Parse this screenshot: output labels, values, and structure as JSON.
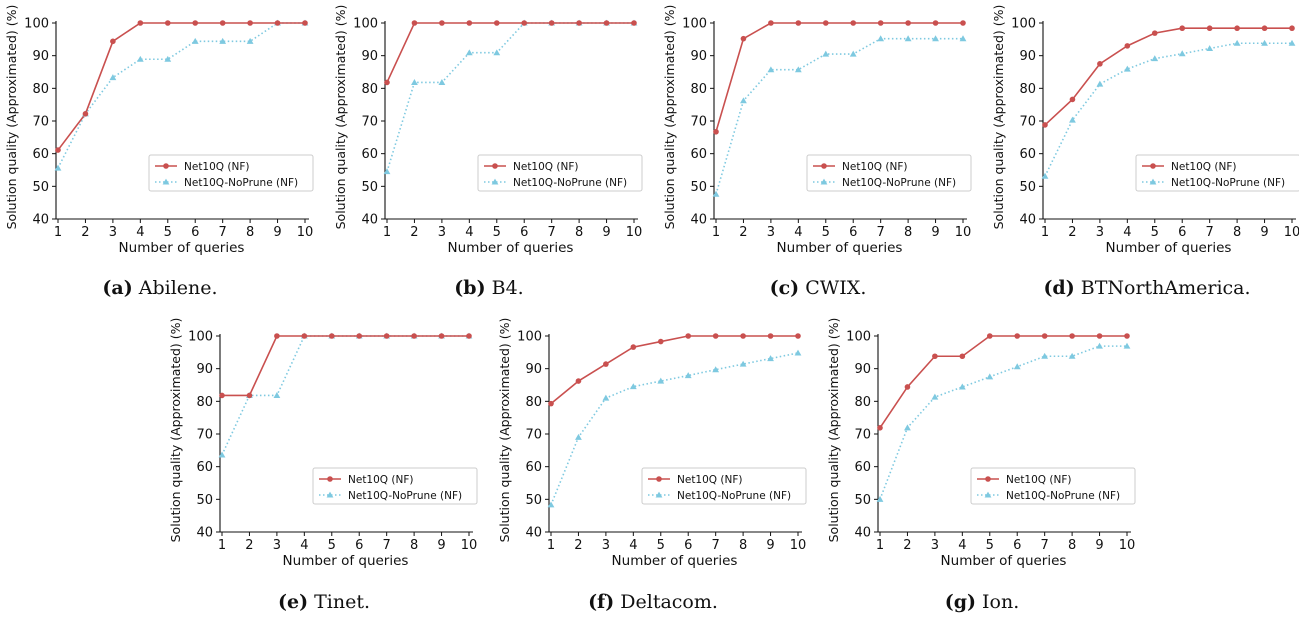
{
  "colors": {
    "series_1": "#c9504f",
    "series_2": "#7ec9e0",
    "axis": "#111111"
  },
  "chart_data": [
    {
      "type": "line",
      "panel_label": "(a)",
      "title": "Abilene.",
      "xlabel": "Number of queries",
      "ylabel": "Solution quality (Approximated) (%)",
      "x": [
        1,
        2,
        3,
        4,
        5,
        6,
        7,
        8,
        9,
        10
      ],
      "ylim": [
        40,
        100
      ],
      "yticks": [
        40,
        50,
        60,
        70,
        80,
        90,
        100
      ],
      "grid": false,
      "legend_position": "lower right",
      "series": [
        {
          "name": "Net10Q (NF)",
          "marker": "circle",
          "style": "solid",
          "values": [
            61.1,
            72.2,
            94.4,
            100,
            100,
            100,
            100,
            100,
            100,
            100
          ]
        },
        {
          "name": "Net10Q-NoPrune (NF)",
          "marker": "triangle",
          "style": "dotted",
          "values": [
            55.6,
            72.2,
            83.3,
            88.9,
            88.9,
            94.4,
            94.4,
            94.4,
            100,
            100
          ]
        }
      ]
    },
    {
      "type": "line",
      "panel_label": "(b)",
      "title": "B4.",
      "xlabel": "Number of queries",
      "ylabel": "Solution quality (Approximated) (%)",
      "x": [
        1,
        2,
        3,
        4,
        5,
        6,
        7,
        8,
        9,
        10
      ],
      "ylim": [
        40,
        100
      ],
      "yticks": [
        40,
        50,
        60,
        70,
        80,
        90,
        100
      ],
      "grid": false,
      "legend_position": "lower right",
      "series": [
        {
          "name": "Net10Q (NF)",
          "marker": "circle",
          "style": "solid",
          "values": [
            81.8,
            100,
            100,
            100,
            100,
            100,
            100,
            100,
            100,
            100
          ]
        },
        {
          "name": "Net10Q-NoPrune (NF)",
          "marker": "triangle",
          "style": "dotted",
          "values": [
            54.5,
            81.8,
            81.8,
            90.9,
            90.9,
            100,
            100,
            100,
            100,
            100
          ]
        }
      ]
    },
    {
      "type": "line",
      "panel_label": "(c)",
      "title": "CWIX.",
      "xlabel": "Number of queries",
      "ylabel": "Solution quality (Approximated) (%)",
      "x": [
        1,
        2,
        3,
        4,
        5,
        6,
        7,
        8,
        9,
        10
      ],
      "ylim": [
        40,
        100
      ],
      "yticks": [
        40,
        50,
        60,
        70,
        80,
        90,
        100
      ],
      "grid": false,
      "legend_position": "lower right",
      "series": [
        {
          "name": "Net10Q (NF)",
          "marker": "circle",
          "style": "solid",
          "values": [
            66.7,
            95.2,
            100,
            100,
            100,
            100,
            100,
            100,
            100,
            100
          ]
        },
        {
          "name": "Net10Q-NoPrune (NF)",
          "marker": "triangle",
          "style": "dotted",
          "values": [
            47.6,
            76.2,
            85.7,
            85.7,
            90.5,
            90.5,
            95.2,
            95.2,
            95.2,
            95.2
          ]
        }
      ]
    },
    {
      "type": "line",
      "panel_label": "(d)",
      "title": "BTNorthAmerica.",
      "xlabel": "Number of queries",
      "ylabel": "Solution quality (Approximated) (%)",
      "x": [
        1,
        2,
        3,
        4,
        5,
        6,
        7,
        8,
        9,
        10
      ],
      "ylim": [
        40,
        100
      ],
      "yticks": [
        40,
        50,
        60,
        70,
        80,
        90,
        100
      ],
      "grid": false,
      "legend_position": "lower right",
      "series": [
        {
          "name": "Net10Q (NF)",
          "marker": "circle",
          "style": "solid",
          "values": [
            68.8,
            76.6,
            87.5,
            93.0,
            96.9,
            98.4,
            98.4,
            98.4,
            98.4,
            98.4
          ]
        },
        {
          "name": "Net10Q-NoPrune (NF)",
          "marker": "triangle",
          "style": "dotted",
          "values": [
            53.1,
            70.3,
            81.3,
            85.9,
            89.1,
            90.6,
            92.2,
            93.8,
            93.8,
            93.8
          ]
        }
      ]
    },
    {
      "type": "line",
      "panel_label": "(e)",
      "title": "Tinet.",
      "xlabel": "Number of queries",
      "ylabel": "Solution quality (Approximated) (%)",
      "x": [
        1,
        2,
        3,
        4,
        5,
        6,
        7,
        8,
        9,
        10
      ],
      "ylim": [
        40,
        100
      ],
      "yticks": [
        40,
        50,
        60,
        70,
        80,
        90,
        100
      ],
      "grid": false,
      "legend_position": "lower right",
      "series": [
        {
          "name": "Net10Q (NF)",
          "marker": "circle",
          "style": "solid",
          "values": [
            81.8,
            81.8,
            100,
            100,
            100,
            100,
            100,
            100,
            100,
            100
          ]
        },
        {
          "name": "Net10Q-NoPrune (NF)",
          "marker": "triangle",
          "style": "dotted",
          "values": [
            63.6,
            81.8,
            81.8,
            100,
            100,
            100,
            100,
            100,
            100,
            100
          ]
        }
      ]
    },
    {
      "type": "line",
      "panel_label": "(f)",
      "title": "Deltacom.",
      "xlabel": "Number of queries",
      "ylabel": "Solution quality (Approximated) (%)",
      "x": [
        1,
        2,
        3,
        4,
        5,
        6,
        7,
        8,
        9,
        10
      ],
      "ylim": [
        40,
        100
      ],
      "yticks": [
        40,
        50,
        60,
        70,
        80,
        90,
        100
      ],
      "grid": false,
      "legend_position": "lower right",
      "series": [
        {
          "name": "Net10Q (NF)",
          "marker": "circle",
          "style": "solid",
          "values": [
            79.3,
            86.2,
            91.4,
            96.6,
            98.3,
            100,
            100,
            100,
            100,
            100
          ]
        },
        {
          "name": "Net10Q-NoPrune (NF)",
          "marker": "triangle",
          "style": "dotted",
          "values": [
            48.3,
            69.0,
            81.0,
            84.5,
            86.2,
            87.9,
            89.7,
            91.4,
            93.1,
            94.8
          ]
        }
      ]
    },
    {
      "type": "line",
      "panel_label": "(g)",
      "title": "Ion.",
      "xlabel": "Number of queries",
      "ylabel": "Solution quality (Approximated) (%)",
      "x": [
        1,
        2,
        3,
        4,
        5,
        6,
        7,
        8,
        9,
        10
      ],
      "ylim": [
        40,
        100
      ],
      "yticks": [
        40,
        50,
        60,
        70,
        80,
        90,
        100
      ],
      "grid": false,
      "legend_position": "lower right",
      "series": [
        {
          "name": "Net10Q (NF)",
          "marker": "circle",
          "style": "solid",
          "values": [
            71.9,
            84.4,
            93.8,
            93.8,
            100,
            100,
            100,
            100,
            100,
            100
          ]
        },
        {
          "name": "Net10Q-NoPrune (NF)",
          "marker": "triangle",
          "style": "dotted",
          "values": [
            50.0,
            71.9,
            81.3,
            84.4,
            87.5,
            90.6,
            93.8,
            93.8,
            96.9,
            96.9
          ]
        }
      ]
    }
  ]
}
